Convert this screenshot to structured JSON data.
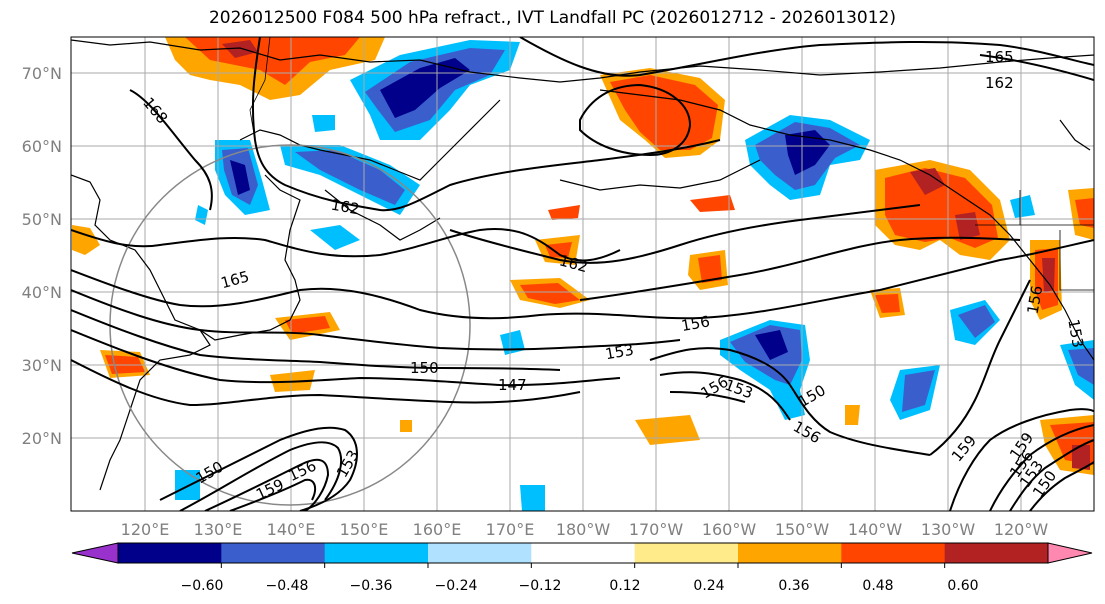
{
  "title": "2026012500 F084 500 hPa refract., IVT Landfall PC (2026012712 - 2026013012)",
  "lat_labels": [
    "70°N",
    "60°N",
    "50°N",
    "40°N",
    "30°N",
    "20°N"
  ],
  "lon_labels": [
    "120°E",
    "130°E",
    "140°E",
    "150°E",
    "160°E",
    "170°E",
    "180°W",
    "170°W",
    "160°W",
    "150°W",
    "140°W",
    "130°W",
    "120°W"
  ],
  "contour_labels": [
    "165",
    "162",
    "168",
    "162",
    "162",
    "165",
    "156",
    "153",
    "150",
    "147",
    "156",
    "153",
    "150",
    "156",
    "159",
    "159",
    "156",
    "153",
    "150",
    "159",
    "156",
    "153",
    "150",
    "156",
    "153"
  ],
  "colorbar": {
    "tick_labels": [
      "−0.60",
      "−0.48",
      "−0.36",
      "−0.24",
      "−0.12",
      "0.12",
      "0.24",
      "0.36",
      "0.48",
      "0.60"
    ],
    "colors": [
      "#9932cc",
      "#00008b",
      "#3a5fcd",
      "#00bfff",
      "#b0e2ff",
      "#ffffff",
      "#ffeb8a",
      "#ffa500",
      "#ff4500",
      "#b22222",
      "#ff88b0"
    ]
  }
}
